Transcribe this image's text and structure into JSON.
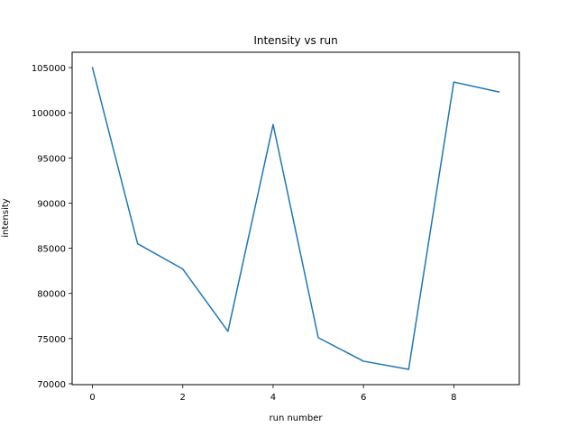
{
  "chart_data": {
    "type": "line",
    "title": "Intensity vs run",
    "xlabel": "run number",
    "ylabel": "intensity",
    "x": [
      0,
      1,
      2,
      3,
      4,
      5,
      6,
      7,
      8,
      9
    ],
    "series": [
      {
        "values": [
          105000,
          85500,
          82700,
          75800,
          98700,
          75100,
          72500,
          71600,
          103400,
          102300
        ],
        "color": "#1f77b4"
      }
    ],
    "xlim": [
      -0.45,
      9.45
    ],
    "ylim": [
      69900,
      106700
    ],
    "xticks": [
      0,
      2,
      4,
      6,
      8
    ],
    "xtick_labels": [
      "0",
      "2",
      "4",
      "6",
      "8"
    ],
    "yticks": [
      70000,
      75000,
      80000,
      85000,
      90000,
      95000,
      100000,
      105000
    ],
    "ytick_labels": [
      "70000",
      "75000",
      "80000",
      "85000",
      "90000",
      "95000",
      "100000",
      "105000"
    ],
    "grid": false,
    "legend": "none"
  }
}
